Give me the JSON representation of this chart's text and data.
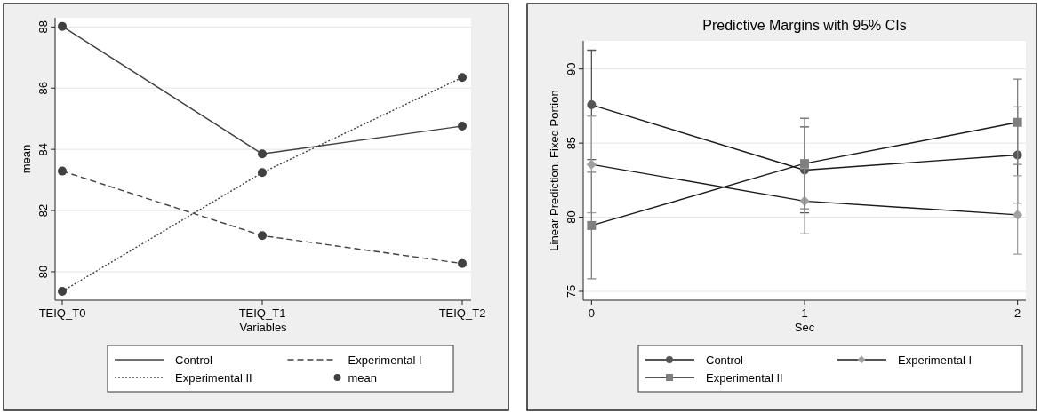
{
  "chart_data": [
    {
      "type": "line",
      "xlabel": "Variables",
      "ylabel": "mean",
      "categories": [
        "TEIQ_T0",
        "TEIQ_T1",
        "TEIQ_T2"
      ],
      "ylim": [
        79.07,
        88.3
      ],
      "yticks": [
        80,
        82,
        84,
        86,
        88
      ],
      "grid": "y",
      "legend": "bottom",
      "marker": "none",
      "series": [
        {
          "name": "Control",
          "color": "#404040",
          "line_style": "solid",
          "values": [
            88.02,
            83.85,
            84.76
          ]
        },
        {
          "name": "Experimental I",
          "color": "#404040",
          "line_style": "dashed",
          "values": [
            83.29,
            81.18,
            80.27
          ]
        },
        {
          "name": "Experimental II",
          "color": "#404040",
          "line_style": "dotted",
          "values": [
            79.36,
            83.24,
            86.35
          ]
        },
        {
          "name": "mean",
          "type": "scatter",
          "marker": "circle",
          "color": "#404040",
          "x": [
            "TEIQ_T0",
            "TEIQ_T1",
            "TEIQ_T2",
            "TEIQ_T0",
            "TEIQ_T1",
            "TEIQ_T2",
            "TEIQ_T0",
            "TEIQ_T1",
            "TEIQ_T2"
          ],
          "values": [
            88.02,
            83.85,
            84.76,
            83.29,
            81.18,
            80.27,
            79.36,
            83.24,
            86.35
          ]
        }
      ]
    },
    {
      "type": "line",
      "title": "Predictive Margins with 95% CIs",
      "xlabel": "Sec",
      "ylabel": "Linear Prediction, Fixed Portion",
      "x": [
        0,
        1,
        2
      ],
      "xlim": [
        -0.039,
        2.039
      ],
      "xticks": [
        0,
        1,
        2
      ],
      "ylim": [
        74.4,
        91.9
      ],
      "yticks": [
        75,
        80,
        85,
        90
      ],
      "grid": "y",
      "legend": "bottom",
      "line_style": "solid",
      "series": [
        {
          "name": "Control",
          "color": "#555555",
          "marker": "circle",
          "values": [
            87.58,
            83.18,
            84.2
          ],
          "errors": [
            [
              83.89,
              91.27
            ],
            [
              80.3,
              86.1
            ],
            [
              80.96,
              87.44
            ]
          ]
        },
        {
          "name": "Experimental I",
          "color": "#a0a0a0",
          "marker": "diamond",
          "values": [
            83.56,
            81.09,
            80.16
          ],
          "errors": [
            [
              80.29,
              86.82
            ],
            [
              78.89,
              83.3
            ],
            [
              77.51,
              82.8
            ]
          ]
        },
        {
          "name": "Experimental II",
          "color": "#808080",
          "marker": "square",
          "values": [
            79.44,
            83.62,
            86.4
          ],
          "errors": [
            [
              75.84,
              83.04
            ],
            [
              80.57,
              86.67
            ],
            [
              83.56,
              89.31
            ]
          ]
        }
      ]
    }
  ]
}
